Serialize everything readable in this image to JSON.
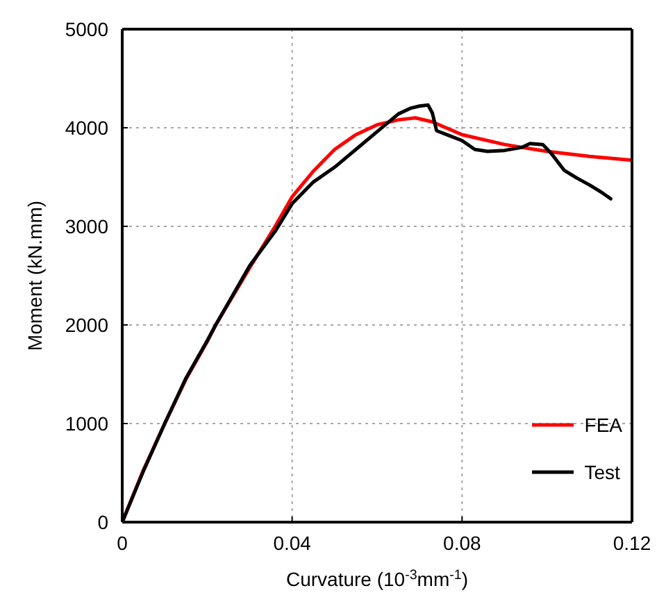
{
  "chart_data": {
    "type": "line",
    "xlabel": "Curvature (10$^{-3}$mm$^{-1}$)",
    "ylabel": "Moment (kN.mm)",
    "xlim": [
      0,
      0.12
    ],
    "xticks": [
      0,
      0.04,
      0.08,
      0.12
    ],
    "ylim": [
      0,
      5000
    ],
    "yticks": [
      0,
      1000,
      2000,
      3000,
      4000,
      5000
    ],
    "grid": true,
    "legend": "bottom right",
    "marker": "none",
    "line_style": "solid",
    "series": [
      {
        "name": "FEA",
        "color": "#ff0000",
        "x": [
          0,
          0.005,
          0.01,
          0.015,
          0.02,
          0.022,
          0.03,
          0.036,
          0.04,
          0.045,
          0.05,
          0.055,
          0.06,
          0.065,
          0.069,
          0.073,
          0.08,
          0.09,
          0.1,
          0.11,
          0.12
        ],
        "values": [
          0,
          530,
          1000,
          1450,
          1830,
          2000,
          2580,
          3000,
          3300,
          3560,
          3780,
          3930,
          4030,
          4080,
          4100,
          4060,
          3930,
          3830,
          3760,
          3710,
          3670
        ]
      },
      {
        "name": "Test",
        "color": "#000000",
        "x": [
          0,
          0.005,
          0.01,
          0.015,
          0.02,
          0.022,
          0.03,
          0.036,
          0.04,
          0.045,
          0.05,
          0.055,
          0.06,
          0.065,
          0.068,
          0.07,
          0.072,
          0.073,
          0.074,
          0.077,
          0.08,
          0.083,
          0.086,
          0.09,
          0.094,
          0.096,
          0.099,
          0.101,
          0.104,
          0.107,
          0.11,
          0.113,
          0.115
        ],
        "values": [
          0,
          520,
          1000,
          1460,
          1840,
          2000,
          2600,
          2950,
          3230,
          3450,
          3600,
          3780,
          3960,
          4140,
          4200,
          4220,
          4230,
          4150,
          3970,
          3920,
          3870,
          3780,
          3760,
          3770,
          3800,
          3840,
          3830,
          3740,
          3570,
          3490,
          3420,
          3340,
          3280
        ]
      }
    ]
  }
}
